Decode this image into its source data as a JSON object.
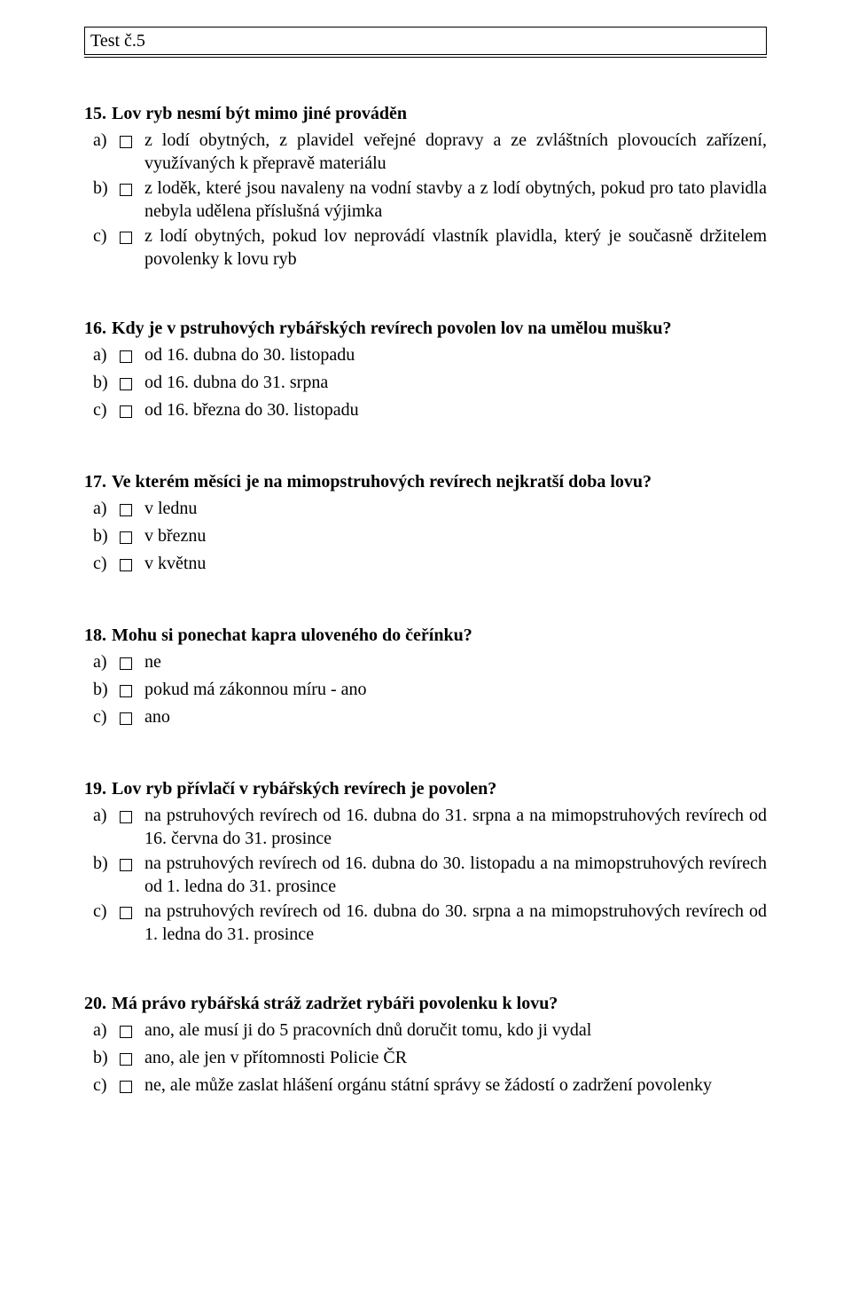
{
  "header": {
    "title": "Test č.5"
  },
  "questions": [
    {
      "number": "15.",
      "text": "Lov ryb nesmí být mimo jiné prováděn",
      "options": [
        {
          "letter": "a)",
          "text": "z lodí obytných, z plavidel veřejné dopravy a ze zvláštních plovoucích zařízení, využívaných k přepravě materiálu"
        },
        {
          "letter": "b)",
          "text": "z loděk, které jsou navaleny na vodní stavby a z lodí obytných, pokud pro tato plavidla nebyla udělena příslušná výjimka"
        },
        {
          "letter": "c)",
          "text": "z lodí obytných, pokud lov neprovádí vlastník plavidla, který je současně držitelem povolenky k lovu ryb"
        }
      ]
    },
    {
      "number": "16.",
      "text": "Kdy je v pstruhových rybářských revírech povolen lov na umělou mušku?",
      "options": [
        {
          "letter": "a)",
          "text": "od 16. dubna do 30. listopadu"
        },
        {
          "letter": "b)",
          "text": "od 16. dubna do 31. srpna"
        },
        {
          "letter": "c)",
          "text": "od 16. března do 30. listopadu"
        }
      ]
    },
    {
      "number": "17.",
      "text": "Ve kterém měsíci je na mimopstruhových revírech nejkratší doba lovu?",
      "options": [
        {
          "letter": "a)",
          "text": "v lednu"
        },
        {
          "letter": "b)",
          "text": "v březnu"
        },
        {
          "letter": "c)",
          "text": "v květnu"
        }
      ]
    },
    {
      "number": "18.",
      "text": "Mohu si ponechat kapra uloveného do čeřínku?",
      "options": [
        {
          "letter": "a)",
          "text": "ne"
        },
        {
          "letter": "b)",
          "text": "pokud má zákonnou míru - ano"
        },
        {
          "letter": "c)",
          "text": "ano"
        }
      ]
    },
    {
      "number": "19.",
      "text": "Lov ryb přívlačí v rybářských revírech je povolen?",
      "options": [
        {
          "letter": "a)",
          "text": "na pstruhových revírech od 16. dubna do 31. srpna a na mimopstruhových revírech od 16. června do 31. prosince"
        },
        {
          "letter": "b)",
          "text": "na pstruhových revírech od 16. dubna do 30. listopadu a na mimopstruhových revírech od 1. ledna do 31. prosince"
        },
        {
          "letter": "c)",
          "text": "na pstruhových revírech od 16. dubna do 30. srpna a na mimopstruhových revírech od 1. ledna do 31. prosince"
        }
      ]
    },
    {
      "number": "20.",
      "text": "Má právo rybářská stráž zadržet rybáři povolenku k lovu?",
      "options": [
        {
          "letter": "a)",
          "text": "ano, ale musí ji do 5 pracovních dnů doručit tomu, kdo ji vydal"
        },
        {
          "letter": "b)",
          "text": "ano, ale jen v přítomnosti  Policie ČR"
        },
        {
          "letter": "c)",
          "text": "ne, ale může zaslat hlášení orgánu státní správy se žádostí o zadržení povolenky"
        }
      ]
    }
  ]
}
